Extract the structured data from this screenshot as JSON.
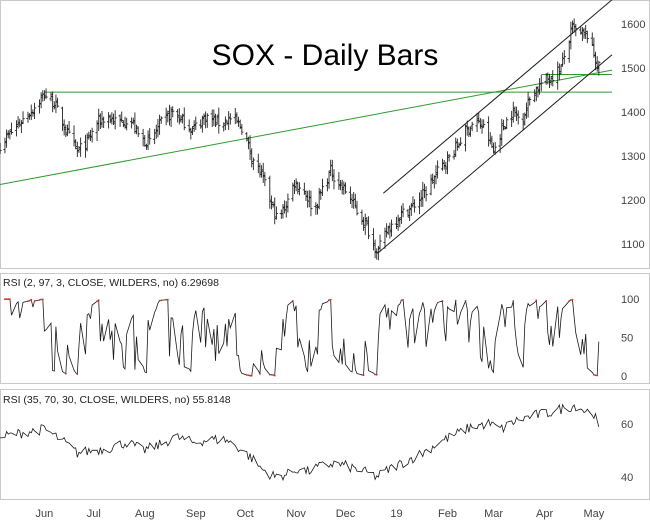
{
  "colors": {
    "background": "#ffffff",
    "price": "#222222",
    "channel": "#1a1a1a",
    "support": "#2e9a2e",
    "rsi": "#1a1a1a",
    "rsi_extreme": "#c0392b",
    "frame": "#c9c9c9"
  },
  "chart_data": [
    {
      "type": "ohlc",
      "title": "SOX - Daily Bars",
      "x_axis": {
        "labels": [
          "Jun",
          "Jul",
          "Aug",
          "Sep",
          "Oct",
          "Nov",
          "Dec",
          "19",
          "Feb",
          "Mar",
          "Apr",
          "May"
        ],
        "label_days": [
          10,
          40,
          71,
          102,
          132,
          163,
          193,
          224,
          255,
          283,
          314,
          344
        ],
        "day_range": [
          -17,
          355
        ]
      },
      "y_axis": {
        "ticks": [
          1100,
          1200,
          1300,
          1400,
          1500,
          1600
        ],
        "ylim": [
          1045,
          1650
        ]
      },
      "anchors": [
        [
          -17,
          1325
        ],
        [
          -5,
          1375
        ],
        [
          5,
          1415
        ],
        [
          10,
          1440
        ],
        [
          16,
          1420
        ],
        [
          24,
          1350
        ],
        [
          30,
          1310
        ],
        [
          36,
          1330
        ],
        [
          42,
          1375
        ],
        [
          48,
          1390
        ],
        [
          55,
          1375
        ],
        [
          62,
          1385
        ],
        [
          68,
          1340
        ],
        [
          74,
          1330
        ],
        [
          80,
          1370
        ],
        [
          88,
          1400
        ],
        [
          94,
          1380
        ],
        [
          100,
          1360
        ],
        [
          108,
          1390
        ],
        [
          116,
          1375
        ],
        [
          124,
          1385
        ],
        [
          130,
          1365
        ],
        [
          136,
          1300
        ],
        [
          142,
          1255
        ],
        [
          148,
          1190
        ],
        [
          152,
          1150
        ],
        [
          158,
          1200
        ],
        [
          162,
          1240
        ],
        [
          168,
          1220
        ],
        [
          174,
          1175
        ],
        [
          180,
          1235
        ],
        [
          184,
          1265
        ],
        [
          190,
          1235
        ],
        [
          196,
          1205
        ],
        [
          200,
          1175
        ],
        [
          206,
          1140
        ],
        [
          210,
          1100
        ],
        [
          213,
          1085
        ],
        [
          219,
          1135
        ],
        [
          226,
          1165
        ],
        [
          234,
          1185
        ],
        [
          242,
          1220
        ],
        [
          250,
          1270
        ],
        [
          258,
          1305
        ],
        [
          266,
          1355
        ],
        [
          272,
          1380
        ],
        [
          278,
          1360
        ],
        [
          283,
          1310
        ],
        [
          289,
          1370
        ],
        [
          295,
          1400
        ],
        [
          300,
          1380
        ],
        [
          306,
          1440
        ],
        [
          312,
          1465
        ],
        [
          318,
          1480
        ],
        [
          324,
          1500
        ],
        [
          331,
          1590
        ],
        [
          336,
          1575
        ],
        [
          340,
          1575
        ],
        [
          344,
          1530
        ],
        [
          348,
          1490
        ]
      ],
      "channel_upper": [
        [
          216,
          1215
        ],
        [
          355,
          1655
        ]
      ],
      "channel_lower": [
        [
          213,
          1080
        ],
        [
          355,
          1530
        ]
      ],
      "support_lines": [
        {
          "from": [
            10,
            1445
          ],
          "to": [
            355,
            1445
          ]
        },
        {
          "from": [
            -17,
            1235
          ],
          "to": [
            355,
            1495
          ]
        },
        {
          "from": [
            312,
            1485
          ],
          "to": [
            355,
            1485
          ]
        }
      ]
    },
    {
      "type": "line",
      "label": "RSI (2, 97, 3, CLOSE, WILDERS, no)",
      "last_value": "6.29698",
      "y_axis": {
        "ticks": [
          0,
          50,
          100
        ],
        "ylim": [
          -8,
          112
        ]
      },
      "overbought": 97,
      "oversold": 3
    },
    {
      "type": "line",
      "label": "RSI (35, 70, 30, CLOSE, WILDERS, no)",
      "last_value": "55.8148",
      "y_axis": {
        "ticks": [
          40,
          60
        ],
        "ylim": [
          32,
          72
        ]
      },
      "anchors": [
        [
          -17,
          55
        ],
        [
          0,
          57
        ],
        [
          10,
          58
        ],
        [
          20,
          54
        ],
        [
          30,
          49
        ],
        [
          40,
          50
        ],
        [
          50,
          51
        ],
        [
          60,
          53
        ],
        [
          70,
          50
        ],
        [
          80,
          52
        ],
        [
          90,
          55
        ],
        [
          100,
          53
        ],
        [
          110,
          54
        ],
        [
          120,
          54
        ],
        [
          128,
          51
        ],
        [
          136,
          47
        ],
        [
          142,
          43
        ],
        [
          150,
          40
        ],
        [
          158,
          41
        ],
        [
          164,
          43
        ],
        [
          170,
          42
        ],
        [
          178,
          44
        ],
        [
          186,
          45
        ],
        [
          194,
          44
        ],
        [
          204,
          42
        ],
        [
          212,
          40
        ],
        [
          220,
          43
        ],
        [
          230,
          46
        ],
        [
          240,
          49
        ],
        [
          250,
          53
        ],
        [
          260,
          56
        ],
        [
          270,
          59
        ],
        [
          280,
          60
        ],
        [
          288,
          58
        ],
        [
          296,
          61
        ],
        [
          306,
          63
        ],
        [
          316,
          64
        ],
        [
          326,
          66
        ],
        [
          334,
          67
        ],
        [
          338,
          65
        ],
        [
          344,
          64
        ],
        [
          348,
          56
        ]
      ]
    }
  ]
}
